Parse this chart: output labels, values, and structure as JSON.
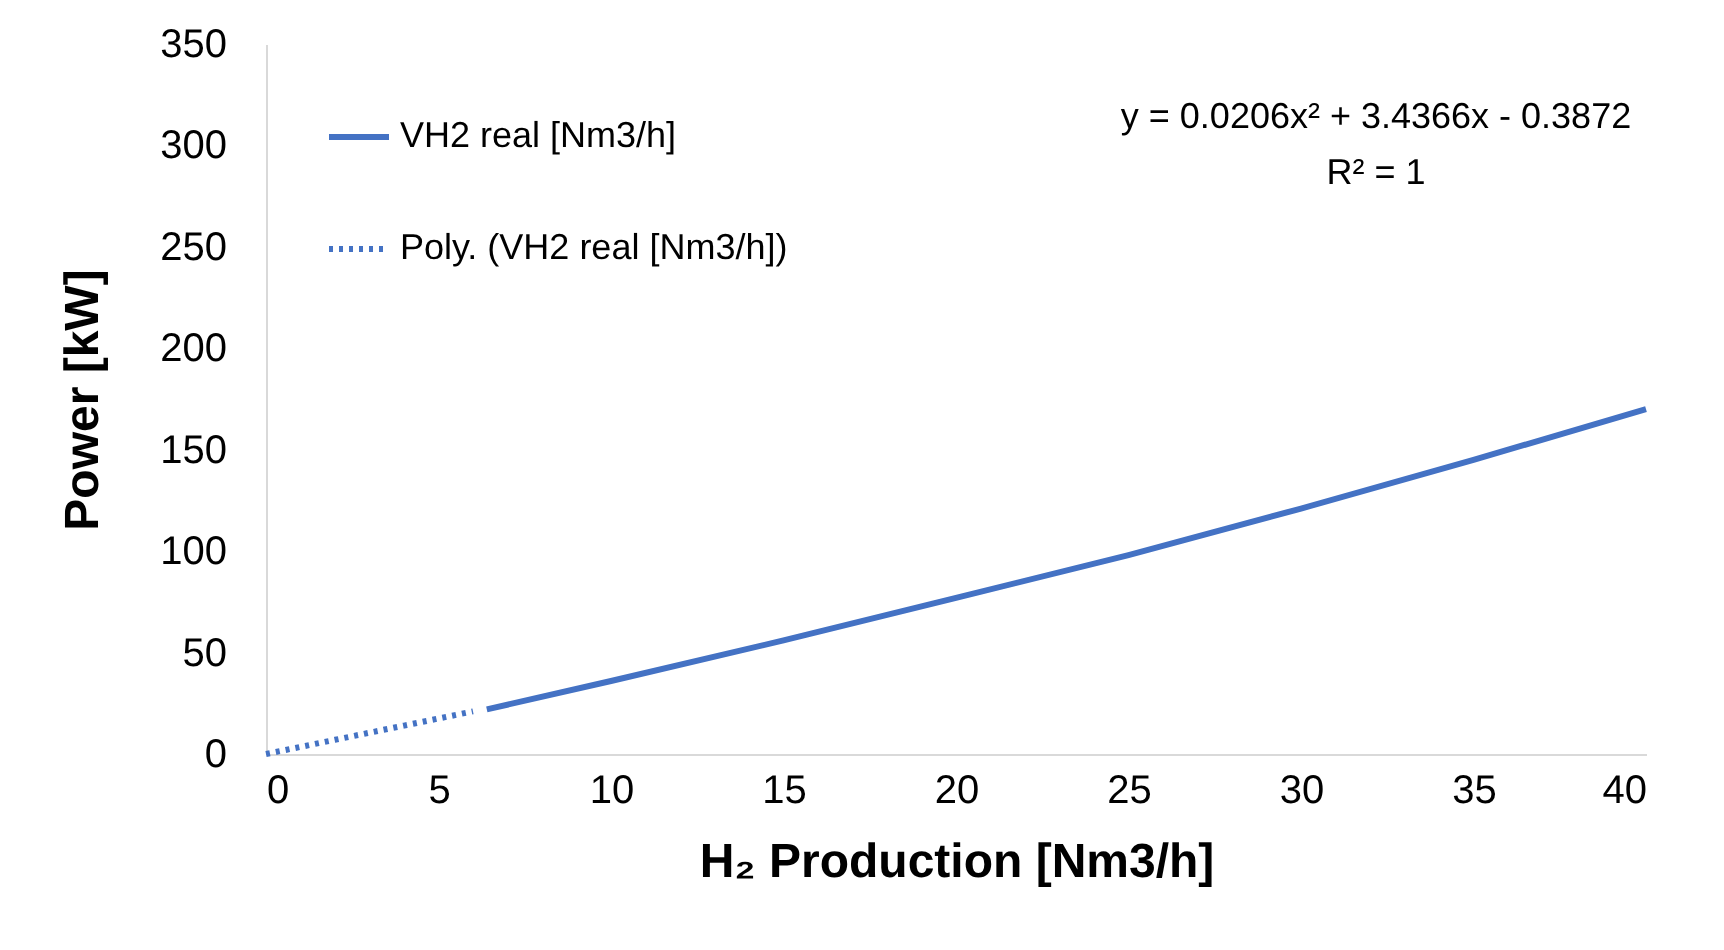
{
  "chart_data": {
    "type": "line",
    "xlabel": "H₂ Production [Nm3/h]",
    "ylabel": "Power [kW]",
    "xlim": [
      0,
      40
    ],
    "xticks": [
      0,
      5,
      10,
      15,
      20,
      25,
      30,
      35,
      40
    ],
    "ylim": [
      0,
      350
    ],
    "yticks": [
      0,
      50,
      100,
      150,
      200,
      250,
      300,
      350
    ],
    "grid": false,
    "legend": "top left",
    "marker": "none",
    "annotations": [
      "y = 0.0206x² + 3.4366x - 0.3872",
      "R² = 1"
    ],
    "series": [
      {
        "name": "VH2 real [Nm3/h]",
        "color": "#4472c4",
        "line_style": "solid",
        "x": [
          6.4,
          10,
          15,
          20,
          25,
          30,
          35,
          40
        ],
        "values": [
          22,
          36,
          56,
          77,
          98,
          121,
          145,
          170
        ]
      },
      {
        "name": "Poly. (VH2 real [Nm3/h])",
        "color": "#4472c4",
        "line_style": "dotted",
        "x": [
          0,
          2,
          4,
          6
        ],
        "values": [
          0,
          7,
          14,
          21
        ]
      }
    ]
  }
}
